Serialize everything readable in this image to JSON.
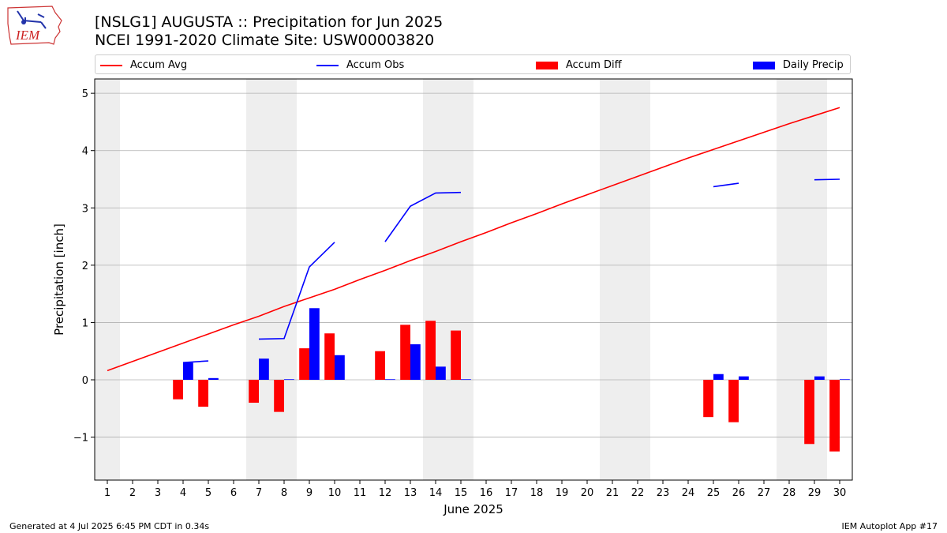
{
  "logo_text": "IEM",
  "title": "[NSLG1] AUGUSTA :: Precipitation for Jun 2025",
  "subtitle": "NCEI 1991-2020 Climate Site: USW00003820",
  "footer_left": "Generated at 4 Jul 2025 6:45 PM CDT in 0.34s",
  "footer_right": "IEM Autoplot App #17",
  "colors": {
    "avg": "#ff0000",
    "obs": "#0000ff",
    "diff": "#ff0000",
    "daily": "#0000ff",
    "weekend": "#eeeeee",
    "grid": "#b0b0b0"
  },
  "chart_data": {
    "type": "bar",
    "xlabel": "June 2025",
    "ylabel": "Precipitation [inch]",
    "ylim": [
      -1.75,
      5.25
    ],
    "yticks": [
      -1,
      0,
      1,
      2,
      3,
      4,
      5
    ],
    "ytick_labels": [
      "−1",
      "0",
      "1",
      "2",
      "3",
      "4",
      "5"
    ],
    "xlim": [
      0.5,
      30.5
    ],
    "days": [
      1,
      2,
      3,
      4,
      5,
      6,
      7,
      8,
      9,
      10,
      11,
      12,
      13,
      14,
      15,
      16,
      17,
      18,
      19,
      20,
      21,
      22,
      23,
      24,
      25,
      26,
      27,
      28,
      29,
      30
    ],
    "weekends": [
      [
        0.5,
        1.5
      ],
      [
        6.5,
        8.5
      ],
      [
        13.5,
        15.5
      ],
      [
        20.5,
        22.5
      ],
      [
        27.5,
        29.5
      ]
    ],
    "grid": "horizontal",
    "legend_position": "top",
    "series": [
      {
        "name": "Accum Avg",
        "kind": "line",
        "values": [
          0.16,
          0.32,
          0.48,
          0.64,
          0.8,
          0.96,
          1.11,
          1.28,
          1.43,
          1.58,
          1.75,
          1.91,
          2.08,
          2.24,
          2.41,
          2.57,
          2.74,
          2.9,
          3.07,
          3.23,
          3.39,
          3.55,
          3.71,
          3.87,
          4.02,
          4.17,
          4.32,
          4.47,
          4.61,
          4.75
        ]
      },
      {
        "name": "Accum Obs",
        "kind": "line",
        "values": [
          null,
          null,
          null,
          0.3,
          0.33,
          null,
          0.71,
          0.72,
          1.97,
          2.4,
          null,
          2.41,
          3.03,
          3.26,
          3.27,
          null,
          null,
          null,
          null,
          null,
          null,
          null,
          null,
          null,
          3.37,
          3.43,
          null,
          null,
          3.49,
          3.5
        ]
      },
      {
        "name": "Accum Diff",
        "kind": "bar",
        "values": [
          null,
          null,
          null,
          -0.34,
          -0.47,
          null,
          -0.4,
          -0.56,
          0.55,
          0.81,
          null,
          0.5,
          0.96,
          1.03,
          0.86,
          null,
          null,
          null,
          null,
          null,
          null,
          null,
          null,
          null,
          -0.65,
          -0.74,
          null,
          null,
          -1.12,
          -1.25
        ]
      },
      {
        "name": "Daily Precip",
        "kind": "bar",
        "values": [
          null,
          null,
          null,
          0.3,
          0.03,
          null,
          0.37,
          0.01,
          1.25,
          0.43,
          null,
          0.01,
          0.62,
          0.23,
          0.01,
          null,
          null,
          null,
          null,
          null,
          null,
          null,
          null,
          null,
          0.1,
          0.06,
          null,
          null,
          0.06,
          0.01
        ]
      }
    ]
  }
}
